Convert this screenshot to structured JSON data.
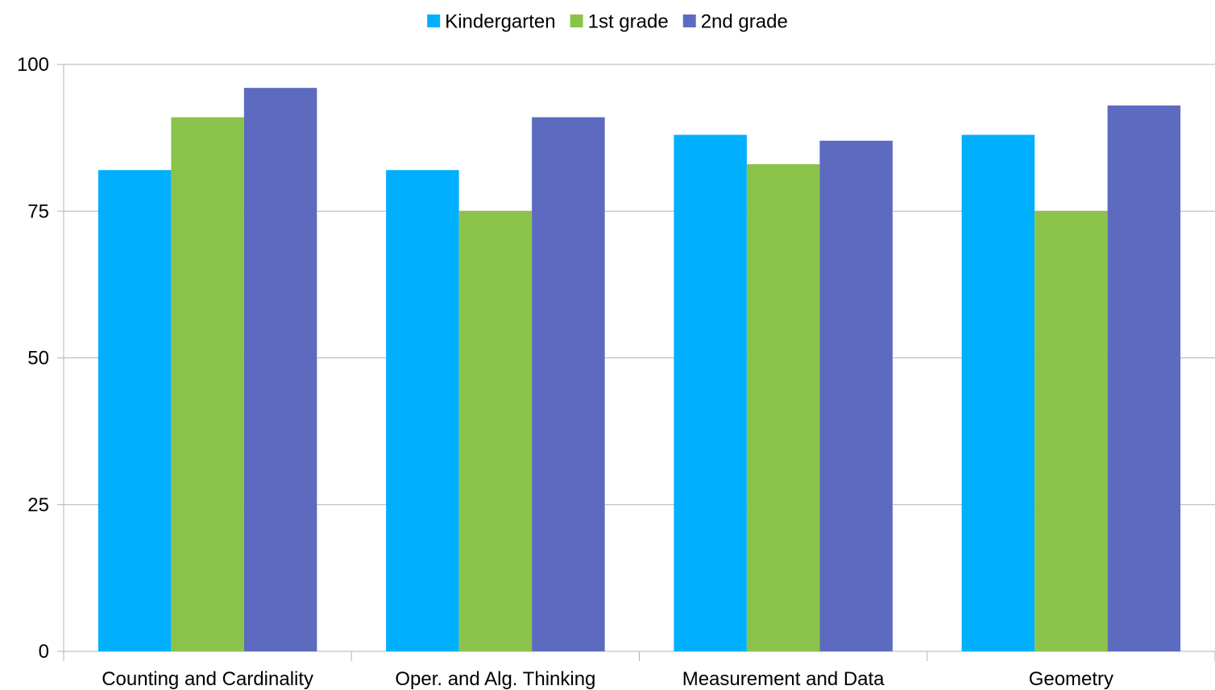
{
  "chart_data": {
    "type": "bar",
    "categories": [
      "Counting and Cardinality",
      "Oper. and Alg. Thinking",
      "Measurement and Data",
      "Geometry"
    ],
    "series": [
      {
        "name": "Kindergarten",
        "values": [
          82,
          82,
          88,
          88
        ],
        "color": "#00B0FF"
      },
      {
        "name": "1st grade",
        "values": [
          91,
          75,
          83,
          75
        ],
        "color": "#8BC34A"
      },
      {
        "name": "2nd grade",
        "values": [
          96,
          91,
          87,
          93
        ],
        "color": "#5C6BC0"
      }
    ],
    "title": "",
    "xlabel": "",
    "ylabel": "",
    "ylim": [
      0,
      100
    ],
    "yticks": [
      0,
      25,
      50,
      75,
      100
    ],
    "grid": true,
    "legend": "top-center"
  }
}
